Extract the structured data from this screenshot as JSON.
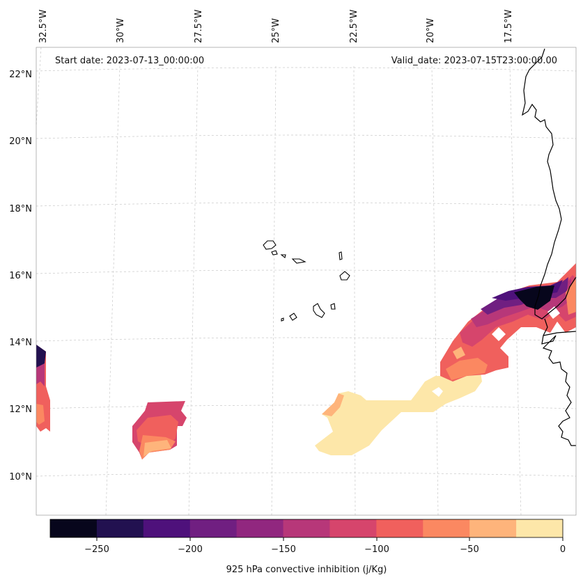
{
  "header": {
    "start_date": "Start date: 2023-07-13_00:00:00",
    "valid_date": "Valid_date: 2023-07-15T23:00:00.00"
  },
  "axes": {
    "lon_labels": [
      "32.5°W",
      "30°W",
      "27.5°W",
      "25°W",
      "22.5°W",
      "20°W",
      "17.5°W"
    ],
    "lat_labels": [
      "22°N",
      "20°N",
      "18°N",
      "16°N",
      "14°N",
      "12°N",
      "10°N"
    ]
  },
  "colorbar": {
    "label": "925 hPa convective inhibition (j/Kg)",
    "ticks": [
      "−250",
      "−200",
      "−150",
      "−100",
      "−50",
      "0"
    ],
    "colors": [
      "#07061c",
      "#221150",
      "#4e117b",
      "#701f81",
      "#91277f",
      "#b73779",
      "#d6456c",
      "#f0605d",
      "#fb8861",
      "#feb47b",
      "#fde7a9"
    ]
  },
  "chart_data": {
    "type": "heatmap",
    "variable": "925 hPa convective inhibition",
    "units": "j/Kg",
    "value_range": [
      -275,
      0
    ],
    "levels": [
      -275,
      -250,
      -225,
      -200,
      -175,
      -150,
      -125,
      -100,
      -75,
      -50,
      -25,
      0
    ],
    "lon_range": [
      -33,
      -15
    ],
    "lat_range": [
      9,
      22.5
    ]
  }
}
